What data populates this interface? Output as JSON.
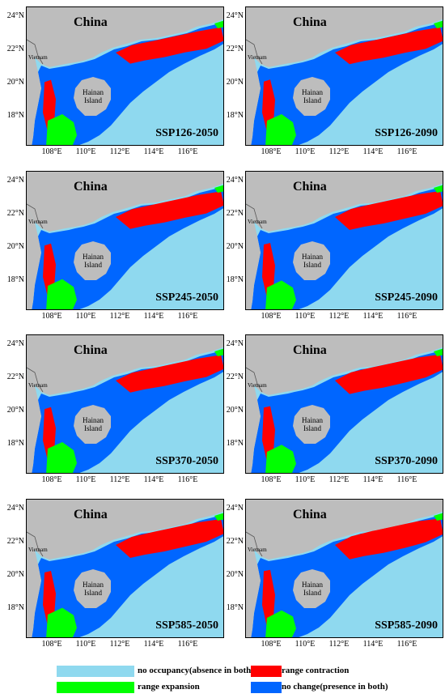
{
  "labels": {
    "country": "China",
    "vietnam": "Vietnam",
    "hainan_line1": "Hainan",
    "hainan_line2": "Island"
  },
  "axes": {
    "lat_ticks": [
      "24°N",
      "22°N",
      "20°N",
      "18°N"
    ],
    "lon_ticks": [
      "108°E",
      "110°E",
      "112°E",
      "114°E",
      "116°E"
    ]
  },
  "panels": [
    {
      "scenario": "SSP126-2050"
    },
    {
      "scenario": "SSP126-2090"
    },
    {
      "scenario": "SSP245-2050"
    },
    {
      "scenario": "SSP245-2090"
    },
    {
      "scenario": "SSP370-2050"
    },
    {
      "scenario": "SSP370-2090"
    },
    {
      "scenario": "SSP585-2050"
    },
    {
      "scenario": "SSP585-2090"
    }
  ],
  "legend": [
    {
      "label": "no occupancy(absence in both)",
      "color": "#8fd9ef"
    },
    {
      "label": "range contraction",
      "color": "#ff0000"
    },
    {
      "label": "range expansion",
      "color": "#00ff00"
    },
    {
      "label": "no change(presence in both)",
      "color": "#0066ff"
    }
  ]
}
